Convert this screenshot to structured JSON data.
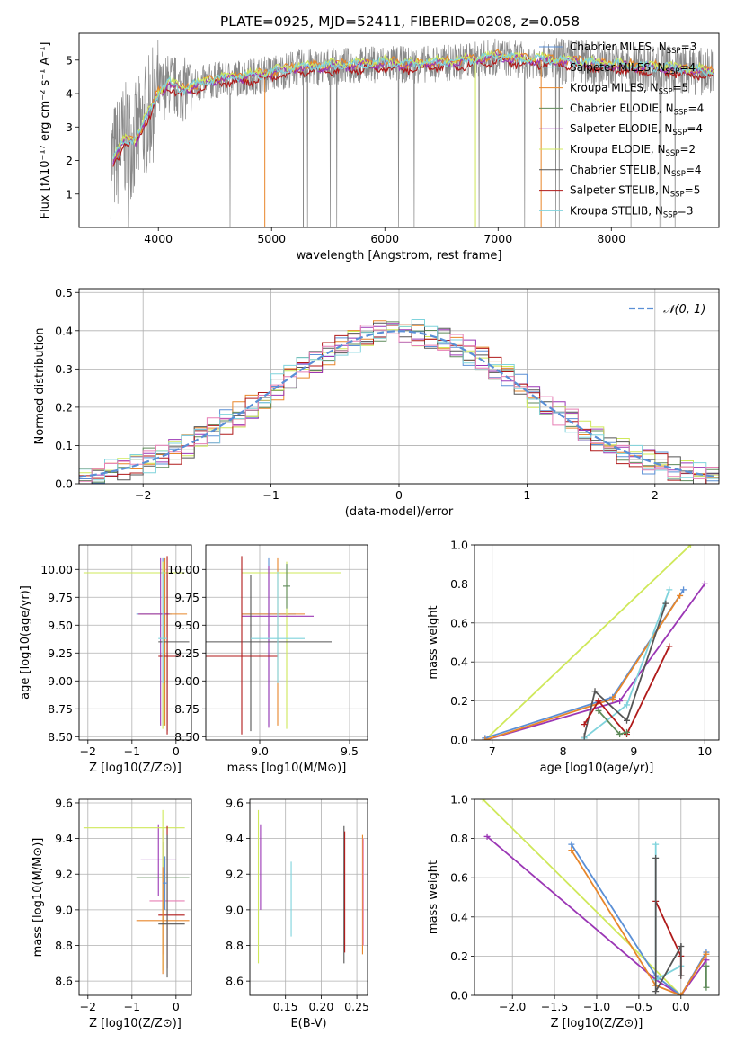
{
  "figure_title": "PLATE=0925, MJD=52411, FIBERID=0208, z=0.058",
  "colors": {
    "Chabrier MILES": "#5a8fd6",
    "Salpeter MILES": "#7fd3dc",
    "Kroupa MILES": "#e8862a",
    "Chabrier ELODIE": "#5f8a5a",
    "Salpeter ELODIE": "#9b37b5",
    "Kroupa ELODIE": "#cfe85a",
    "Chabrier STELIB": "#555555",
    "Salpeter STELIB": "#b01a1a",
    "Kroupa STELIB": "#7fd3dc",
    "pink": "#e77fb5",
    "data": "#888888",
    "normal": "#5a8fd6"
  },
  "chart_data": [
    {
      "id": "spectrum",
      "type": "line",
      "title": "PLATE=0925, MJD=52411, FIBERID=0208, z=0.058",
      "xlabel": "wavelength [Angstrom, rest frame]",
      "ylabel": "Flux [fλ10⁻¹⁷ erg cm⁻² s⁻¹ A⁻¹]",
      "xlim": [
        3300,
        8950
      ],
      "ylim": [
        0,
        5.8
      ],
      "xticks": [
        4000,
        5000,
        6000,
        7000,
        8000
      ],
      "yticks": [
        1,
        2,
        3,
        4,
        5
      ],
      "legend_position": "right",
      "legend": [
        {
          "label": "Chabrier MILES, N",
          "sub": "SSP",
          "n": "=3",
          "color": "#5a8fd6"
        },
        {
          "label": "Salpeter MILES, N",
          "sub": "SSP",
          "n": "=4",
          "color": "#7fd3dc"
        },
        {
          "label": "Kroupa MILES, N",
          "sub": "SSP",
          "n": "=5",
          "color": "#e8862a"
        },
        {
          "label": "Chabrier ELODIE, N",
          "sub": "SSP",
          "n": "=4",
          "color": "#5f8a5a"
        },
        {
          "label": "Salpeter ELODIE, N",
          "sub": "SSP",
          "n": "=4",
          "color": "#9b37b5"
        },
        {
          "label": "Kroupa ELODIE, N",
          "sub": "SSP",
          "n": "=2",
          "color": "#cfe85a"
        },
        {
          "label": "Chabrier STELIB, N",
          "sub": "SSP",
          "n": "=4",
          "color": "#555555"
        },
        {
          "label": "Salpeter STELIB, N",
          "sub": "SSP",
          "n": "=5",
          "color": "#b01a1a"
        },
        {
          "label": "Kroupa STELIB, N",
          "sub": "SSP",
          "n": "=3",
          "color": "#7fd3dc"
        }
      ],
      "continuum": {
        "x": [
          3600,
          3700,
          3800,
          3900,
          4000,
          4100,
          4200,
          4300,
          4500,
          4800,
          5000,
          5200,
          5500,
          5800,
          6000,
          6200,
          6500,
          6800,
          7000,
          7200,
          7400,
          7600,
          7800,
          8000,
          8200,
          8500,
          8800
        ],
        "y": [
          2.0,
          2.6,
          2.6,
          3.3,
          4.0,
          4.3,
          4.1,
          4.2,
          4.4,
          4.5,
          4.6,
          4.75,
          4.8,
          4.85,
          4.9,
          4.85,
          4.9,
          5.0,
          5.1,
          5.0,
          5.0,
          4.95,
          4.9,
          4.85,
          4.8,
          4.75,
          4.65
        ]
      },
      "models": [
        {
          "name": "Salpeter STELIB",
          "color": "#b01a1a",
          "offset": -0.12
        },
        {
          "name": "Kroupa MILES",
          "color": "#e8862a",
          "offset": 0.05
        },
        {
          "name": "Salpeter ELODIE",
          "color": "#9b37b5",
          "offset": 0.0
        },
        {
          "name": "Kroupa ELODIE",
          "color": "#cfe85a",
          "offset": 0.08
        },
        {
          "name": "Kroupa STELIB",
          "color": "#7fd3dc",
          "offset": 0.03
        }
      ]
    },
    {
      "id": "residuals",
      "type": "bar",
      "xlabel": "(data-model)/error",
      "ylabel": "Normed distribution",
      "xlim": [
        -2.5,
        2.5
      ],
      "ylim": [
        0,
        0.51
      ],
      "xticks": [
        -2,
        -1,
        0,
        1,
        2
      ],
      "yticks": [
        0.0,
        0.1,
        0.2,
        0.3,
        0.4,
        0.5
      ],
      "grid": true,
      "legend": "N(0,1)",
      "legend_position": "top-right",
      "series_colors": [
        "#5a8fd6",
        "#e8862a",
        "#5f8a5a",
        "#9b37b5",
        "#cfe85a",
        "#555555",
        "#b01a1a",
        "#7fd3dc",
        "#e77fb5"
      ]
    },
    {
      "id": "age_vs_Z",
      "type": "scatter",
      "xlabel": "Z [log10(Z/Z⊙)]",
      "ylabel": "age [log10(age/yr)]",
      "xlim": [
        -2.2,
        0.35
      ],
      "ylim": [
        8.47,
        10.22
      ],
      "xticks": [
        -2,
        -1,
        0
      ],
      "yticks": [
        8.5,
        8.75,
        9.0,
        9.25,
        9.5,
        9.75,
        10.0
      ],
      "points": [
        {
          "x": -0.3,
          "y": 9.6,
          "xerr": [
            0.6,
            0.2
          ],
          "yerr": [
            1.0,
            0.5
          ],
          "color": "#5a8fd6"
        },
        {
          "x": -0.25,
          "y": 9.6,
          "xerr": [
            0.6,
            0.5
          ],
          "yerr": [
            1.0,
            0.5
          ],
          "color": "#e8862a"
        },
        {
          "x": -0.3,
          "y": 9.97,
          "xerr": [
            1.8,
            0.5
          ],
          "yerr": [
            1.4,
            0.1
          ],
          "color": "#cfe85a"
        },
        {
          "x": -0.35,
          "y": 9.6,
          "xerr": [
            0.5,
            0.2
          ],
          "yerr": [
            1.0,
            0.5
          ],
          "color": "#9b37b5"
        },
        {
          "x": -0.2,
          "y": 9.35,
          "xerr": [
            0.2,
            0.5
          ],
          "yerr": [
            0.8,
            0.6
          ],
          "color": "#555555"
        },
        {
          "x": -0.2,
          "y": 9.22,
          "xerr": [
            0.2,
            0.3
          ],
          "yerr": [
            0.7,
            0.9
          ],
          "color": "#b01a1a"
        },
        {
          "x": -0.3,
          "y": 9.38,
          "xerr": [
            0.1,
            0.1
          ],
          "yerr": [
            0.4,
            0.6
          ],
          "color": "#7fd3dc"
        }
      ]
    },
    {
      "id": "age_vs_mass",
      "type": "scatter",
      "xlabel": "mass [log10(M/M⊙)]",
      "ylabel": "",
      "xlim": [
        8.7,
        9.6
      ],
      "ylim": [
        8.47,
        10.22
      ],
      "xticks": [
        9.0,
        9.5
      ],
      "yticks": [
        8.5,
        8.75,
        9.0,
        9.25,
        9.5,
        9.75,
        10.0
      ],
      "points": [
        {
          "x": 9.05,
          "y": 9.6,
          "xerr": [
            0.15,
            0.15
          ],
          "yerr": [
            1.0,
            0.5
          ],
          "color": "#5a8fd6"
        },
        {
          "x": 9.1,
          "y": 9.6,
          "xerr": [
            0.2,
            0.15
          ],
          "yerr": [
            1.0,
            0.5
          ],
          "color": "#e8862a"
        },
        {
          "x": 9.15,
          "y": 9.97,
          "xerr": [
            0.25,
            0.3
          ],
          "yerr": [
            1.4,
            0.1
          ],
          "color": "#cfe85a"
        },
        {
          "x": 9.05,
          "y": 9.58,
          "xerr": [
            0.15,
            0.25
          ],
          "yerr": [
            1.0,
            0.45
          ],
          "color": "#9b37b5"
        },
        {
          "x": 8.95,
          "y": 9.35,
          "xerr": [
            0.45,
            0.45
          ],
          "yerr": [
            0.8,
            0.6
          ],
          "color": "#555555"
        },
        {
          "x": 8.9,
          "y": 9.22,
          "xerr": [
            0.2,
            0.2
          ],
          "yerr": [
            0.7,
            0.9
          ],
          "color": "#b01a1a"
        },
        {
          "x": 9.1,
          "y": 9.38,
          "xerr": [
            0.15,
            0.15
          ],
          "yerr": [
            0.4,
            0.6
          ],
          "color": "#7fd3dc"
        },
        {
          "x": 9.15,
          "y": 9.85,
          "xerr": [
            0.02,
            0.02
          ],
          "yerr": [
            0.2,
            0.2
          ],
          "color": "#5f8a5a"
        }
      ]
    },
    {
      "id": "mass_weight_vs_age",
      "type": "line",
      "xlabel": "age [log10(age/yr)]",
      "ylabel": "mass weight",
      "xlim": [
        6.75,
        10.2
      ],
      "ylim": [
        0,
        1.0
      ],
      "xticks": [
        7,
        8,
        9,
        10
      ],
      "yticks": [
        0.0,
        0.2,
        0.4,
        0.6,
        0.8,
        1.0
      ],
      "series": [
        {
          "name": "Kroupa ELODIE",
          "color": "#cfe85a",
          "x": [
            6.9,
            9.8
          ],
          "y": [
            0.0,
            1.0
          ]
        },
        {
          "name": "Salpeter ELODIE",
          "color": "#9b37b5",
          "x": [
            6.9,
            8.8,
            10.0
          ],
          "y": [
            0.0,
            0.2,
            0.8
          ]
        },
        {
          "name": "Chabrier MILES",
          "color": "#5a8fd6",
          "x": [
            6.9,
            8.7,
            9.7
          ],
          "y": [
            0.01,
            0.22,
            0.77
          ]
        },
        {
          "name": "Kroupa MILES",
          "color": "#e8862a",
          "x": [
            6.9,
            8.7,
            9.65
          ],
          "y": [
            0.0,
            0.21,
            0.74
          ]
        },
        {
          "name": "Salpeter MILES",
          "color": "#7fd3dc",
          "x": [
            8.3,
            8.9,
            9.5
          ],
          "y": [
            0.01,
            0.18,
            0.77
          ]
        },
        {
          "name": "Chabrier STELIB",
          "color": "#555555",
          "x": [
            8.3,
            8.45,
            8.9,
            9.45
          ],
          "y": [
            0.02,
            0.25,
            0.1,
            0.7
          ]
        },
        {
          "name": "Salpeter STELIB",
          "color": "#b01a1a",
          "x": [
            8.3,
            8.5,
            8.9,
            9.5
          ],
          "y": [
            0.08,
            0.2,
            0.03,
            0.48
          ]
        },
        {
          "name": "Chabrier ELODIE",
          "color": "#5f8a5a",
          "x": [
            8.5,
            8.8,
            8.9
          ],
          "y": [
            0.15,
            0.03,
            0.04
          ]
        }
      ]
    },
    {
      "id": "mass_vs_Z",
      "type": "scatter",
      "xlabel": "Z [log10(Z/Z⊙)]",
      "ylabel": "mass [log10(M/M⊙)]",
      "xlim": [
        -2.2,
        0.35
      ],
      "ylim": [
        8.52,
        9.62
      ],
      "xticks": [
        -2,
        -1,
        0
      ],
      "yticks": [
        8.6,
        8.8,
        9.0,
        9.2,
        9.4,
        9.6
      ],
      "points": [
        {
          "x": -0.4,
          "y": 9.28,
          "xerr": [
            0.4,
            0.4
          ],
          "yerr": [
            0.2,
            0.2
          ],
          "color": "#9b37b5"
        },
        {
          "x": -0.3,
          "y": 9.18,
          "xerr": [
            0.6,
            0.6
          ],
          "yerr": [
            0.25,
            0.2
          ],
          "color": "#5f8a5a"
        },
        {
          "x": -0.3,
          "y": 9.05,
          "xerr": [
            0.3,
            0.5
          ],
          "yerr": [
            0.3,
            0.4
          ],
          "color": "#e77fb5"
        },
        {
          "x": -0.3,
          "y": 9.46,
          "xerr": [
            1.8,
            0.5
          ],
          "yerr": [
            0.8,
            0.1
          ],
          "color": "#cfe85a"
        },
        {
          "x": -0.2,
          "y": 8.97,
          "xerr": [
            0.2,
            0.4
          ],
          "yerr": [
            0.3,
            0.5
          ],
          "color": "#b01a1a"
        },
        {
          "x": -0.3,
          "y": 8.94,
          "xerr": [
            0.6,
            0.6
          ],
          "yerr": [
            0.3,
            0.3
          ],
          "color": "#e8862a"
        },
        {
          "x": -0.2,
          "y": 8.92,
          "xerr": [
            0.2,
            0.4
          ],
          "yerr": [
            0.3,
            0.5
          ],
          "color": "#555555"
        },
        {
          "x": -0.25,
          "y": 9.15,
          "xerr": [
            0.05,
            0.05
          ],
          "yerr": [
            0.15,
            0.15
          ],
          "color": "#5a8fd6"
        }
      ]
    },
    {
      "id": "mass_vs_ebv",
      "type": "scatter",
      "xlabel": "E(B-V)",
      "ylabel": "",
      "xlim": [
        0.1,
        0.265
      ],
      "ylim": [
        8.52,
        9.62
      ],
      "xticks": [
        0.15,
        0.2,
        0.25
      ],
      "yticks": [
        8.6,
        8.8,
        9.0,
        9.2,
        9.4,
        9.6
      ],
      "vlines": [
        {
          "x": 0.112,
          "y0": 8.7,
          "y1": 9.56,
          "color": "#cfe85a"
        },
        {
          "x": 0.115,
          "y0": 9.0,
          "y1": 9.48,
          "color": "#9b37b5"
        },
        {
          "x": 0.158,
          "y0": 8.85,
          "y1": 9.27,
          "color": "#7fd3dc"
        },
        {
          "x": 0.232,
          "y0": 8.7,
          "y1": 9.47,
          "color": "#555555"
        },
        {
          "x": 0.233,
          "y0": 8.76,
          "y1": 9.44,
          "color": "#b01a1a"
        },
        {
          "x": 0.258,
          "y0": 8.75,
          "y1": 9.42,
          "color": "#e8862a"
        },
        {
          "x": 0.259,
          "y0": 8.8,
          "y1": 9.4,
          "color": "#e77fb5"
        }
      ]
    },
    {
      "id": "mass_weight_vs_Z",
      "type": "line",
      "xlabel": "Z [log10(Z/Z⊙)]",
      "ylabel": "mass weight",
      "xlim": [
        -2.45,
        0.45
      ],
      "ylim": [
        0,
        1.0
      ],
      "xticks": [
        -2.0,
        -1.5,
        -1.0,
        -0.5,
        0.0
      ],
      "yticks": [
        0.0,
        0.2,
        0.4,
        0.6,
        0.8,
        1.0
      ],
      "series": [
        {
          "name": "Kroupa ELODIE",
          "color": "#cfe85a",
          "x": [
            -2.35,
            0.0
          ],
          "y": [
            1.0,
            0.0
          ]
        },
        {
          "name": "Salpeter ELODIE",
          "color": "#9b37b5",
          "x": [
            -2.3,
            -0.3,
            0.0,
            0.3
          ],
          "y": [
            0.81,
            0.08,
            0.0,
            0.18
          ]
        },
        {
          "name": "Chabrier MILES",
          "color": "#5a8fd6",
          "x": [
            -1.3,
            -0.3,
            0.0,
            0.3
          ],
          "y": [
            0.77,
            0.1,
            0.0,
            0.22
          ]
        },
        {
          "name": "Kroupa MILES",
          "color": "#e8862a",
          "x": [
            -1.3,
            -0.3,
            0.0,
            0.3
          ],
          "y": [
            0.74,
            0.05,
            0.0,
            0.21
          ]
        },
        {
          "name": "Salpeter MILES",
          "color": "#7fd3dc",
          "x": [
            -0.3,
            -0.3,
            0.0
          ],
          "y": [
            0.77,
            0.08,
            0.15
          ]
        },
        {
          "name": "Salpeter STELIB",
          "color": "#b01a1a",
          "x": [
            -0.3,
            0.0,
            0.0
          ],
          "y": [
            0.48,
            0.2,
            0.1
          ]
        },
        {
          "name": "Chabrier STELIB",
          "color": "#555555",
          "x": [
            -0.3,
            -0.3,
            0.0,
            0.0
          ],
          "y": [
            0.7,
            0.02,
            0.25,
            0.1
          ]
        },
        {
          "name": "Chabrier ELODIE",
          "color": "#5f8a5a",
          "x": [
            0.3,
            0.3
          ],
          "y": [
            0.15,
            0.04
          ]
        }
      ]
    }
  ]
}
